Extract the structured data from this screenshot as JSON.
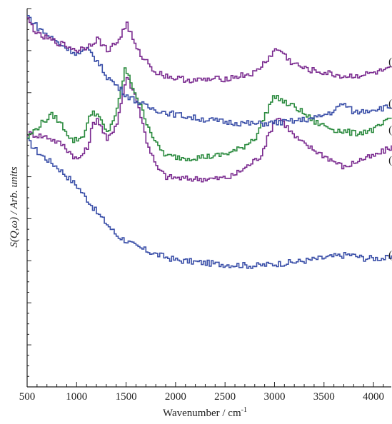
{
  "chart_data": {
    "type": "line",
    "xlabel": "Wavenumber / cm",
    "xlabel_sup": "-1",
    "ylabel": "S(Q,ω) / Arb. units",
    "xlim": [
      500,
      4180
    ],
    "x_ticks": [
      500,
      1000,
      1500,
      2000,
      2500,
      3000,
      3500,
      4000
    ],
    "ylim": [
      0,
      100
    ],
    "y_ticks_labeled": false,
    "legend": "none",
    "series": [
      {
        "name": "(a)",
        "color": "#3a4fa8",
        "points": [
          [
            500,
            65
          ],
          [
            600,
            62
          ],
          [
            800,
            58
          ],
          [
            1000,
            53
          ],
          [
            1200,
            46
          ],
          [
            1400,
            40
          ],
          [
            1600,
            37
          ],
          [
            1800,
            35
          ],
          [
            2000,
            33.5
          ],
          [
            2400,
            32.5
          ],
          [
            2800,
            32
          ],
          [
            3200,
            33
          ],
          [
            3600,
            34.5
          ],
          [
            3750,
            35
          ],
          [
            3900,
            34
          ],
          [
            4180,
            34
          ]
        ]
      },
      {
        "name": "(b)",
        "color": "#7a2a8f",
        "points": [
          [
            500,
            67
          ],
          [
            700,
            66
          ],
          [
            850,
            64
          ],
          [
            1000,
            60
          ],
          [
            1100,
            63
          ],
          [
            1150,
            69
          ],
          [
            1200,
            71
          ],
          [
            1300,
            65
          ],
          [
            1400,
            70
          ],
          [
            1480,
            80
          ],
          [
            1500,
            82
          ],
          [
            1600,
            76
          ],
          [
            1700,
            65
          ],
          [
            1800,
            58
          ],
          [
            1900,
            55.5
          ],
          [
            2100,
            55
          ],
          [
            2400,
            55
          ],
          [
            2550,
            55.5
          ],
          [
            2700,
            58
          ],
          [
            2850,
            61
          ],
          [
            3000,
            71
          ],
          [
            3050,
            71
          ],
          [
            3200,
            66
          ],
          [
            3300,
            64
          ],
          [
            3500,
            61
          ],
          [
            3700,
            58
          ],
          [
            3850,
            60
          ],
          [
            4000,
            61
          ],
          [
            4180,
            63.5
          ]
        ]
      },
      {
        "name": "(c)",
        "color": "#2a8a3e",
        "points": [
          [
            500,
            66
          ],
          [
            650,
            70
          ],
          [
            750,
            72
          ],
          [
            850,
            69
          ],
          [
            950,
            65
          ],
          [
            1050,
            66
          ],
          [
            1150,
            73
          ],
          [
            1200,
            72
          ],
          [
            1300,
            67
          ],
          [
            1400,
            73
          ],
          [
            1480,
            84
          ],
          [
            1550,
            80
          ],
          [
            1700,
            70
          ],
          [
            1800,
            64
          ],
          [
            1900,
            61
          ],
          [
            2100,
            60.5
          ],
          [
            2400,
            61
          ],
          [
            2550,
            62
          ],
          [
            2650,
            63
          ],
          [
            2800,
            66
          ],
          [
            2950,
            75
          ],
          [
            3000,
            77
          ],
          [
            3100,
            75
          ],
          [
            3200,
            74
          ],
          [
            3400,
            70
          ],
          [
            3600,
            68
          ],
          [
            3800,
            67
          ],
          [
            4000,
            68
          ],
          [
            4180,
            71
          ]
        ]
      },
      {
        "name": "(d)",
        "color": "#3a4fa8",
        "points": [
          [
            500,
            98
          ],
          [
            600,
            95
          ],
          [
            800,
            91
          ],
          [
            1000,
            88
          ],
          [
            1100,
            89
          ],
          [
            1150,
            88
          ],
          [
            1300,
            82
          ],
          [
            1500,
            77
          ],
          [
            1700,
            74
          ],
          [
            1900,
            72.5
          ],
          [
            2200,
            71
          ],
          [
            2500,
            70
          ],
          [
            2800,
            69.5
          ],
          [
            3100,
            70
          ],
          [
            3400,
            71
          ],
          [
            3600,
            73
          ],
          [
            3680,
            75
          ],
          [
            3800,
            72.5
          ],
          [
            4000,
            73.5
          ],
          [
            4180,
            74
          ]
        ]
      },
      {
        "name": "(e)",
        "color": "#7a2a8f",
        "points": [
          [
            500,
            97
          ],
          [
            600,
            93
          ],
          [
            800,
            91
          ],
          [
            900,
            90
          ],
          [
            1000,
            89
          ],
          [
            1100,
            90
          ],
          [
            1200,
            92
          ],
          [
            1300,
            89
          ],
          [
            1400,
            91
          ],
          [
            1500,
            96
          ],
          [
            1600,
            89
          ],
          [
            1800,
            83
          ],
          [
            2000,
            81.5
          ],
          [
            2200,
            81
          ],
          [
            2500,
            81.5
          ],
          [
            2800,
            83
          ],
          [
            3000,
            89
          ],
          [
            3050,
            89
          ],
          [
            3150,
            86
          ],
          [
            3300,
            84
          ],
          [
            3500,
            83
          ],
          [
            3700,
            82
          ],
          [
            3900,
            82.5
          ],
          [
            4000,
            83
          ],
          [
            4180,
            84
          ]
        ]
      }
    ]
  }
}
